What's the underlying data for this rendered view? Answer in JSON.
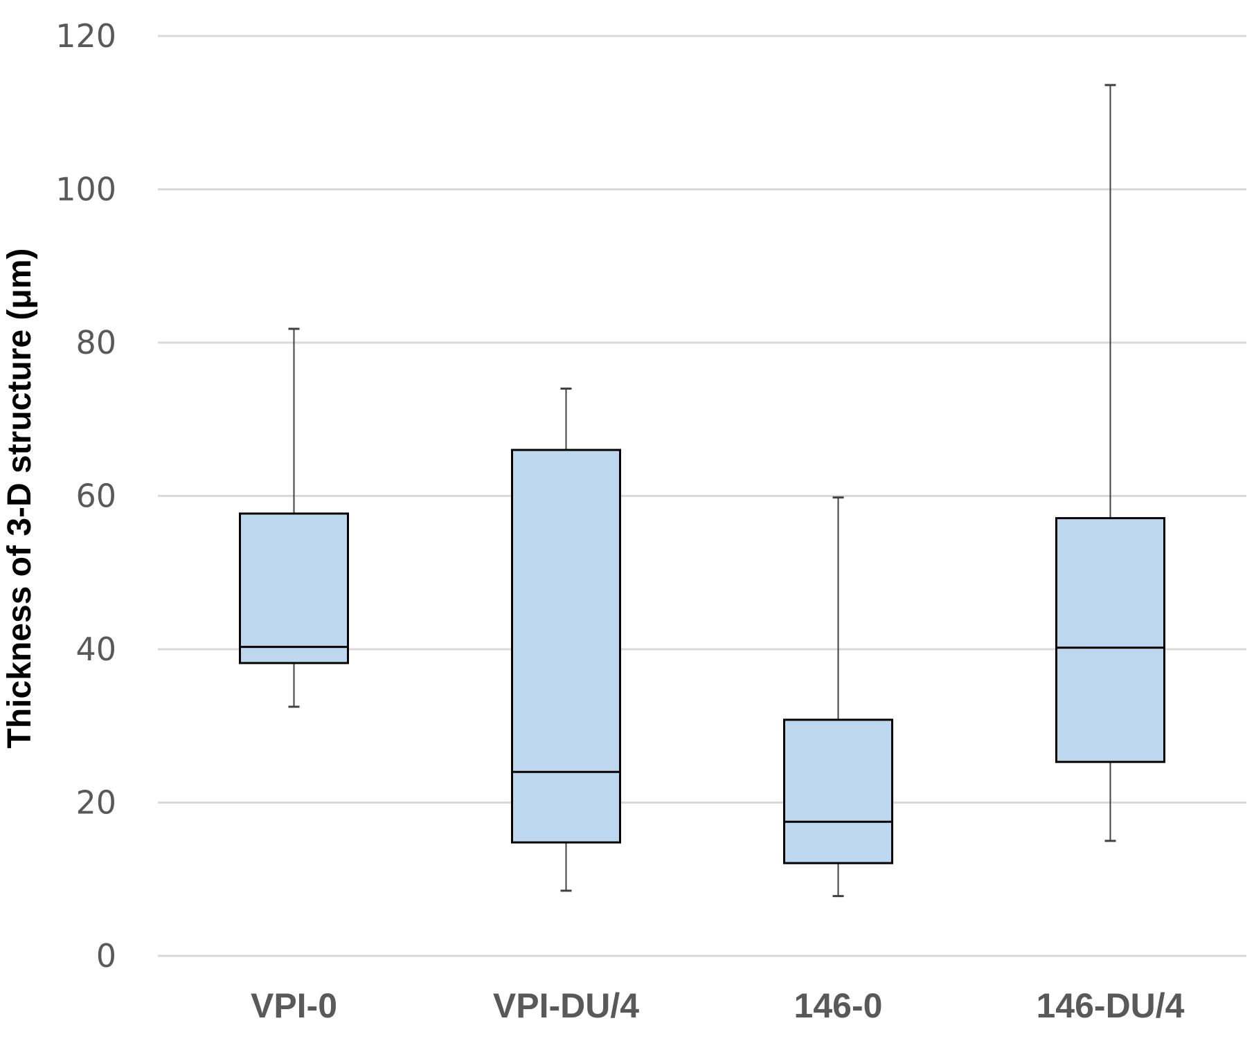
{
  "chart_data": {
    "type": "box",
    "title": "",
    "xlabel": "",
    "ylabel": "Thickness of  3-D structure (μm)",
    "ylim": [
      0,
      120
    ],
    "yticks": [
      "0",
      "20",
      "40",
      "60",
      "80",
      "100",
      "120"
    ],
    "grid": true,
    "categories": [
      "VPI-0",
      "VPI-DU/4",
      "146-0",
      "146-DU/4"
    ],
    "boxes": [
      {
        "label": "VPI-0",
        "min": 32.5,
        "q1": 38.2,
        "median": 40.3,
        "q3": 57.7,
        "max": 81.8
      },
      {
        "label": "VPI-DU/4",
        "min": 8.5,
        "q1": 14.8,
        "median": 24.0,
        "q3": 66.0,
        "max": 74.0
      },
      {
        "label": "146-0",
        "min": 7.8,
        "q1": 12.1,
        "median": 17.5,
        "q3": 30.8,
        "max": 59.8
      },
      {
        "label": "146-DU/4",
        "min": 15.0,
        "q1": 25.3,
        "median": 40.2,
        "q3": 57.1,
        "max": 113.6
      }
    ],
    "box_color": "#bdd7ee",
    "line_color": "#000000",
    "whisker_color": "#404040",
    "grid_color": "#d9d9d9",
    "tick_label_color": "#595959"
  }
}
